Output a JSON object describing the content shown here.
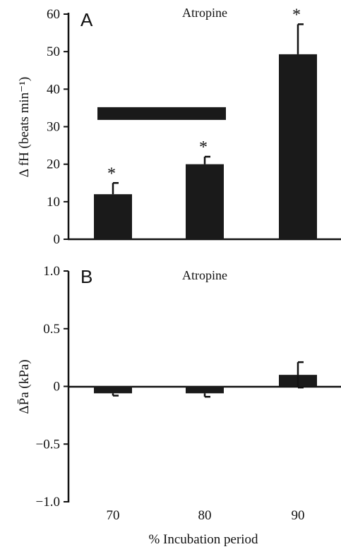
{
  "chart_data": [
    {
      "panel": "A",
      "type": "bar",
      "title": "Atropine",
      "ylabel": "Δ fH (beats min⁻¹)",
      "ylim": [
        0,
        60
      ],
      "yticks": [
        "60",
        "50",
        "40",
        "30",
        "20",
        "10",
        "0"
      ],
      "categories": [
        "70",
        "80",
        "90"
      ],
      "values": [
        12,
        20,
        49.3
      ],
      "errors": [
        3,
        2,
        8
      ],
      "markers": [
        "*",
        "*",
        "*"
      ],
      "bracket_value": 33.5
    },
    {
      "panel": "B",
      "type": "bar",
      "title": "Atropine",
      "ylabel": "ΔP̄a (kPa)",
      "ylim": [
        -1.0,
        1.0
      ],
      "yticks": [
        "1.0",
        "0.5",
        "0",
        "−0.5",
        "−1.0"
      ],
      "categories": [
        "70",
        "80",
        "90"
      ],
      "values": [
        -0.06,
        -0.06,
        0.1
      ],
      "errors": [
        0.02,
        0.03,
        0.11
      ],
      "xlabel": "% Incubation period"
    }
  ],
  "colors": {
    "bar": "#1a1a1a",
    "axis": "#111111"
  }
}
